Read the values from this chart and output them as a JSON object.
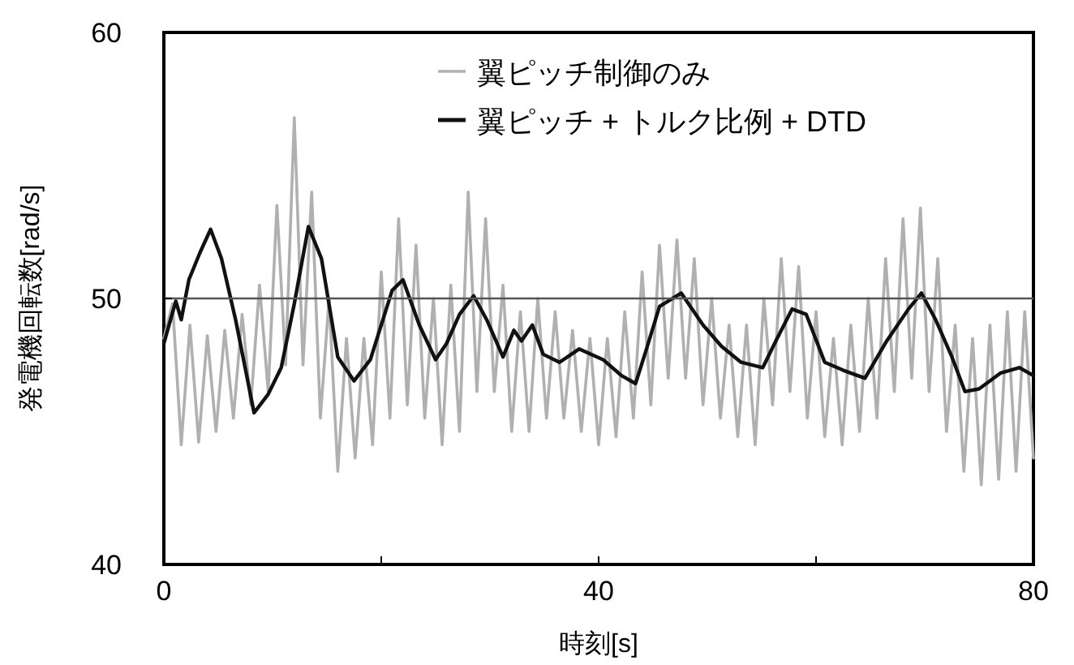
{
  "chart_data": {
    "type": "line",
    "xlabel": "時刻[s]",
    "ylabel": "発電機回転数[rad/s]",
    "xlim": [
      0,
      80
    ],
    "ylim": [
      40,
      60
    ],
    "xticks": [
      0,
      {
        "value": 20,
        "label": null
      },
      40,
      {
        "value": 60,
        "label": null
      },
      80
    ],
    "yticks": [
      40,
      50,
      60
    ],
    "grid": false,
    "legend": "top right",
    "marker": "none",
    "line_style": "solid",
    "ref_lines": [
      {
        "axis": "y",
        "value": 50,
        "color": "#555555"
      }
    ],
    "series": [
      {
        "name": "翼ピッチ制御のみ",
        "color": "#b0b0b0",
        "x": [
          0,
          0.8,
          1.6,
          2.4,
          3.2,
          4,
          4.8,
          5.6,
          6.4,
          7.2,
          8,
          8.8,
          9.6,
          10.4,
          11.2,
          12,
          12.8,
          13.6,
          14.4,
          15.2,
          16,
          16.8,
          17.6,
          18.4,
          19.2,
          20,
          20.8,
          21.6,
          22.4,
          23.2,
          24,
          24.8,
          25.6,
          26.4,
          27.2,
          28,
          28.8,
          29.6,
          30.4,
          31.2,
          32,
          32.8,
          33.6,
          34.4,
          35.2,
          36,
          36.8,
          37.6,
          38.4,
          39.2,
          40,
          40.8,
          41.6,
          42.4,
          43.2,
          44,
          44.8,
          45.6,
          46.4,
          47.2,
          48,
          48.8,
          49.6,
          50.4,
          51.2,
          52,
          52.8,
          53.6,
          54.4,
          55.2,
          56,
          56.8,
          57.6,
          58.4,
          59.2,
          60,
          60.8,
          61.6,
          62.4,
          63.2,
          64,
          64.8,
          65.6,
          66.4,
          67.2,
          68,
          68.8,
          69.6,
          70.4,
          71.2,
          72,
          72.8,
          73.6,
          74.4,
          75.2,
          76,
          76.8,
          77.6,
          78.4,
          79.2,
          80
        ],
        "values": [
          48.5,
          49.8,
          44.5,
          49,
          44.6,
          48.6,
          45,
          48.8,
          45.5,
          49.4,
          46,
          50.5,
          46.5,
          53.5,
          47.5,
          56.8,
          47.5,
          54,
          45.5,
          50,
          43.5,
          48.5,
          44,
          48.5,
          44.5,
          51,
          45.5,
          53,
          46,
          52,
          45.5,
          50,
          44.5,
          50.5,
          45,
          54,
          46.5,
          53,
          46.5,
          50.5,
          45,
          49.5,
          45,
          50,
          45.5,
          49.5,
          45.5,
          48.8,
          45,
          48.5,
          44.5,
          48.5,
          44.8,
          49.5,
          45.5,
          51,
          46,
          52,
          47,
          52.2,
          47,
          51.5,
          46,
          50,
          45.5,
          49,
          44.8,
          49,
          44.5,
          50,
          46,
          51.5,
          46.5,
          51.2,
          45.5,
          49.5,
          44.8,
          48.5,
          44.5,
          49,
          45,
          50,
          45.5,
          51.5,
          46.5,
          53,
          47,
          53.4,
          46.5,
          51.5,
          45,
          49,
          43.5,
          48.5,
          43,
          49,
          43.2,
          49.5,
          43.5,
          49.5,
          44
        ]
      },
      {
        "name": "翼ピッチ + トルク比例 + DTD",
        "color": "#111111",
        "x": [
          0,
          0.2,
          1.1,
          1.6,
          2.3,
          3.3,
          4.3,
          5.3,
          6.6,
          8.3,
          9.6,
          10.8,
          12,
          13.3,
          14.5,
          16,
          17.5,
          19,
          21,
          22,
          23.5,
          25,
          26,
          27.2,
          28.5,
          29.7,
          31.2,
          32.2,
          32.9,
          33.9,
          34.9,
          36.4,
          38.2,
          40.4,
          42.1,
          43.4,
          44.4,
          45.6,
          47.6,
          49.6,
          51.3,
          53.1,
          55.1,
          56.3,
          57.8,
          59.1,
          60.8,
          62.5,
          64.5,
          66.5,
          68.5,
          69.7,
          71,
          72.5,
          73.7,
          75,
          77,
          78.7,
          80
        ],
        "values": [
          48.3,
          48.6,
          49.9,
          49.2,
          50.7,
          51.7,
          52.6,
          51.5,
          49.2,
          45.7,
          46.4,
          47.4,
          49.8,
          52.7,
          51.5,
          47.8,
          46.9,
          47.7,
          50.3,
          50.7,
          49,
          47.7,
          48.3,
          49.4,
          50.1,
          49.2,
          47.8,
          48.8,
          48.4,
          49,
          47.9,
          47.6,
          48.1,
          47.7,
          47.1,
          46.8,
          48.1,
          49.7,
          50.2,
          49,
          48.2,
          47.6,
          47.4,
          48.4,
          49.6,
          49.4,
          47.6,
          47.3,
          47,
          48.4,
          49.6,
          50.2,
          49.2,
          47.8,
          46.5,
          46.6,
          47.2,
          47.4,
          47.1
        ]
      }
    ]
  }
}
